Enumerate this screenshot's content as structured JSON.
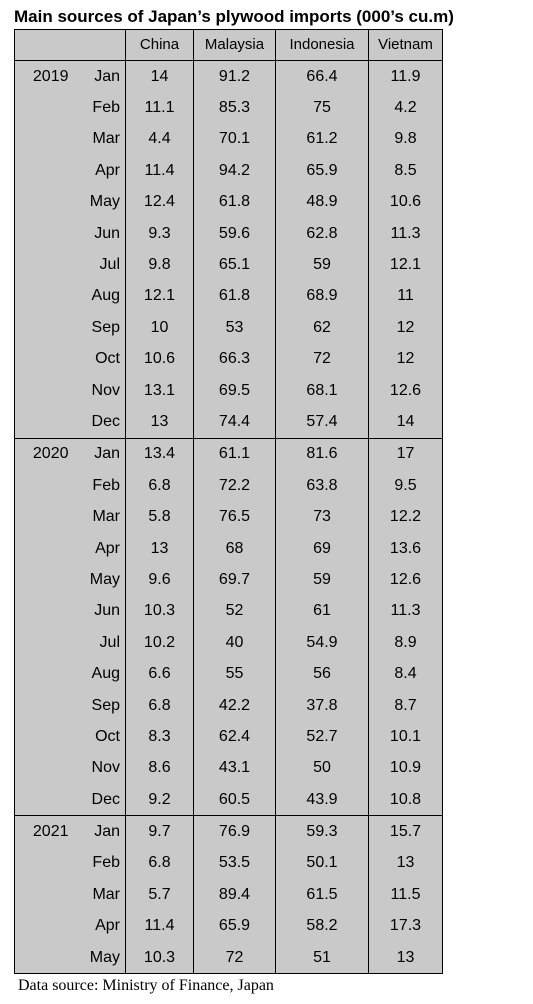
{
  "title": "Main sources of Japan’s plywood imports (000’s cu.m)",
  "source": "Data source: Ministry of Finance, Japan",
  "colors": {
    "table_background": "#c9c9c9",
    "border": "#000000"
  },
  "chart_data": {
    "type": "table",
    "title": "Main sources of Japan’s plywood imports (000’s cu.m)",
    "columns": [
      "China",
      "Malaysia",
      "Indonesia",
      "Vietnam"
    ],
    "rows": [
      {
        "year": "2019",
        "month": "Jan",
        "values": [
          "14",
          "91.2",
          "66.4",
          "11.9"
        ]
      },
      {
        "year": "",
        "month": "Feb",
        "values": [
          "11.1",
          "85.3",
          "75",
          "4.2"
        ]
      },
      {
        "year": "",
        "month": "Mar",
        "values": [
          "4.4",
          "70.1",
          "61.2",
          "9.8"
        ]
      },
      {
        "year": "",
        "month": "Apr",
        "values": [
          "11.4",
          "94.2",
          "65.9",
          "8.5"
        ]
      },
      {
        "year": "",
        "month": "May",
        "values": [
          "12.4",
          "61.8",
          "48.9",
          "10.6"
        ]
      },
      {
        "year": "",
        "month": "Jun",
        "values": [
          "9.3",
          "59.6",
          "62.8",
          "11.3"
        ]
      },
      {
        "year": "",
        "month": "Jul",
        "values": [
          "9.8",
          "65.1",
          "59",
          "12.1"
        ]
      },
      {
        "year": "",
        "month": "Aug",
        "values": [
          "12.1",
          "61.8",
          "68.9",
          "11"
        ]
      },
      {
        "year": "",
        "month": "Sep",
        "values": [
          "10",
          "53",
          "62",
          "12"
        ]
      },
      {
        "year": "",
        "month": "Oct",
        "values": [
          "10.6",
          "66.3",
          "72",
          "12"
        ]
      },
      {
        "year": "",
        "month": "Nov",
        "values": [
          "13.1",
          "69.5",
          "68.1",
          "12.6"
        ]
      },
      {
        "year": "",
        "month": "Dec",
        "values": [
          "13",
          "74.4",
          "57.4",
          "14"
        ]
      },
      {
        "year": "2020",
        "month": "Jan",
        "values": [
          "13.4",
          "61.1",
          "81.6",
          "17"
        ]
      },
      {
        "year": "",
        "month": "Feb",
        "values": [
          "6.8",
          "72.2",
          "63.8",
          "9.5"
        ]
      },
      {
        "year": "",
        "month": "Mar",
        "values": [
          "5.8",
          "76.5",
          "73",
          "12.2"
        ]
      },
      {
        "year": "",
        "month": "Apr",
        "values": [
          "13",
          "68",
          "69",
          "13.6"
        ]
      },
      {
        "year": "",
        "month": "May",
        "values": [
          "9.6",
          "69.7",
          "59",
          "12.6"
        ]
      },
      {
        "year": "",
        "month": "Jun",
        "values": [
          "10.3",
          "52",
          "61",
          "11.3"
        ]
      },
      {
        "year": "",
        "month": "Jul",
        "values": [
          "10.2",
          "40",
          "54.9",
          "8.9"
        ]
      },
      {
        "year": "",
        "month": "Aug",
        "values": [
          "6.6",
          "55",
          "56",
          "8.4"
        ]
      },
      {
        "year": "",
        "month": "Sep",
        "values": [
          "6.8",
          "42.2",
          "37.8",
          "8.7"
        ]
      },
      {
        "year": "",
        "month": "Oct",
        "values": [
          "8.3",
          "62.4",
          "52.7",
          "10.1"
        ]
      },
      {
        "year": "",
        "month": "Nov",
        "values": [
          "8.6",
          "43.1",
          "50",
          "10.9"
        ]
      },
      {
        "year": "",
        "month": "Dec",
        "values": [
          "9.2",
          "60.5",
          "43.9",
          "10.8"
        ]
      },
      {
        "year": "2021",
        "month": "Jan",
        "values": [
          "9.7",
          "76.9",
          "59.3",
          "15.7"
        ]
      },
      {
        "year": "",
        "month": "Feb",
        "values": [
          "6.8",
          "53.5",
          "50.1",
          "13"
        ]
      },
      {
        "year": "",
        "month": "Mar",
        "values": [
          "5.7",
          "89.4",
          "61.5",
          "11.5"
        ]
      },
      {
        "year": "",
        "month": "Apr",
        "values": [
          "11.4",
          "65.9",
          "58.2",
          "17.3"
        ]
      },
      {
        "year": "",
        "month": "May",
        "values": [
          "10.3",
          "72",
          "51",
          "13"
        ]
      }
    ]
  }
}
